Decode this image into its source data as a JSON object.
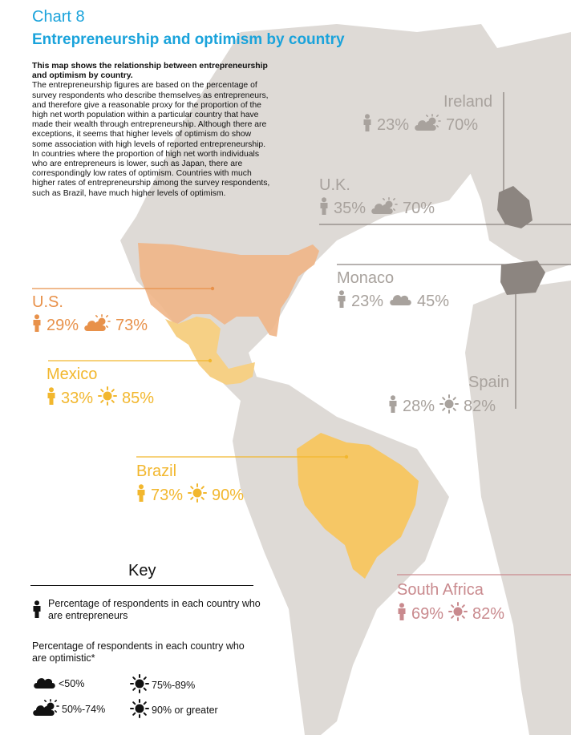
{
  "header": {
    "chart_number": "Chart 8",
    "title": "Entrepreneurship and optimism by country"
  },
  "intro": {
    "lead": "This map shows the relationship between entrepreneurship and optimism by country.",
    "body": "The entrepreneurship figures are based on the percentage of survey respondents who describe themselves as entrepreneurs, and therefore give a reasonable proxy for the proportion of the high net worth population within a particular country that have made their wealth through entrepreneurship. Although there are exceptions, it seems that higher levels of optimism do show some association with high levels of reported entrepreneurship. In countries where the proportion of high net worth individuals who are entrepreneurs is lower, such as Japan, there are correspondingly low rates of optimism. Countries with much higher rates of entrepreneurship among the survey respondents, such as Brazil, have much higher levels of optimism."
  },
  "colors": {
    "us": "#e8914a",
    "mexico": "#f2b72e",
    "brazil": "#f2b72e",
    "grey_countries": "#8c8580",
    "south_africa": "#c98a8e",
    "land": "#dedad6",
    "accent_blue": "#1aa3db"
  },
  "countries": [
    {
      "id": "us",
      "name": "U.S.",
      "entrepreneurs": "29%",
      "optimism": "73%",
      "optimism_icon": "cloud-sun-icon"
    },
    {
      "id": "mexico",
      "name": "Mexico",
      "entrepreneurs": "33%",
      "optimism": "85%",
      "optimism_icon": "sun-icon"
    },
    {
      "id": "brazil",
      "name": "Brazil",
      "entrepreneurs": "73%",
      "optimism": "90%",
      "optimism_icon": "sun-icon"
    },
    {
      "id": "ireland",
      "name": "Ireland",
      "entrepreneurs": "23%",
      "optimism": "70%",
      "optimism_icon": "cloud-sun-icon"
    },
    {
      "id": "uk",
      "name": "U.K.",
      "entrepreneurs": "35%",
      "optimism": "70%",
      "optimism_icon": "cloud-sun-icon"
    },
    {
      "id": "monaco",
      "name": "Monaco",
      "entrepreneurs": "23%",
      "optimism": "45%",
      "optimism_icon": "cloud-icon"
    },
    {
      "id": "spain",
      "name": "Spain",
      "entrepreneurs": "28%",
      "optimism": "82%",
      "optimism_icon": "sun-icon"
    },
    {
      "id": "south_africa",
      "name": "South Africa",
      "entrepreneurs": "69%",
      "optimism": "82%",
      "optimism_icon": "sun-icon"
    }
  ],
  "key": {
    "title": "Key",
    "entrepreneur_desc": "Percentage of respondents in each country who are entrepreneurs",
    "optimism_desc": "Percentage of respondents in each country who are optimistic*",
    "levels": {
      "cloud": "<50%",
      "cloud_sun": "50%-74%",
      "sun_partial": "75%-89%",
      "sun_full": "90% or greater"
    }
  }
}
